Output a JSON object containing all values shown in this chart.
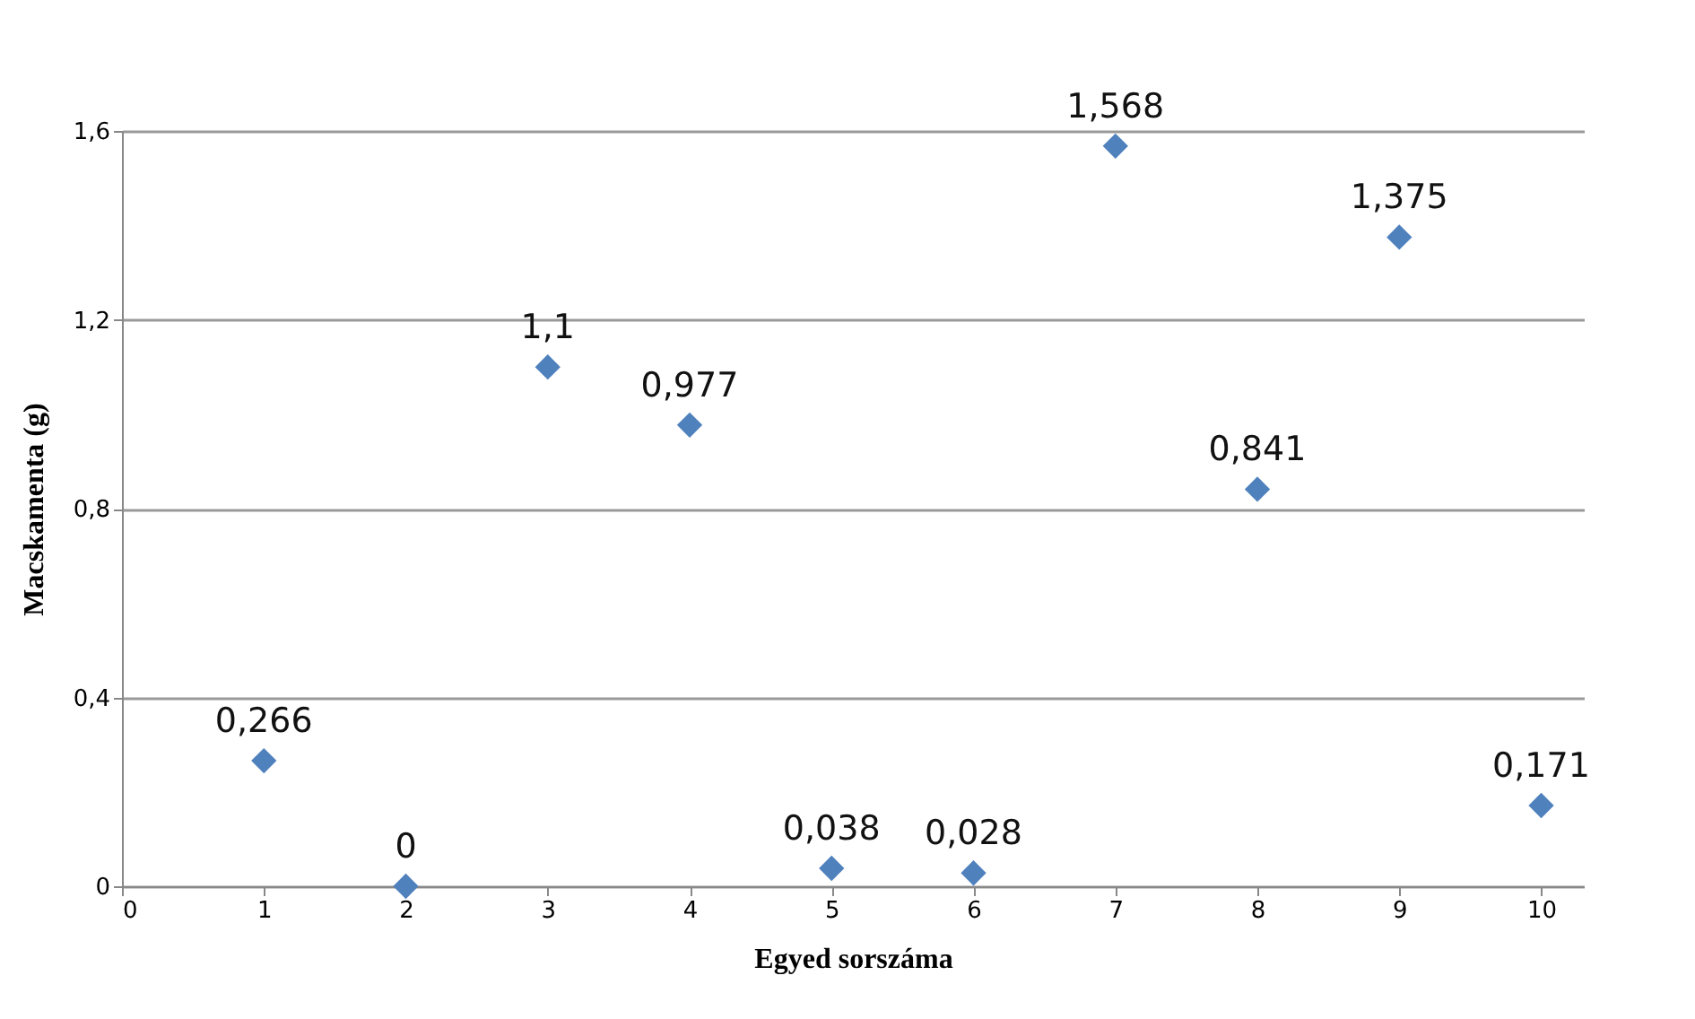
{
  "chart_data": {
    "type": "scatter",
    "xlabel": "Egyed sorszáma",
    "ylabel": "Macskamenta (g)",
    "x": [
      1,
      2,
      3,
      4,
      5,
      6,
      7,
      8,
      9,
      10
    ],
    "series": [
      {
        "color": "#4f81bd",
        "values": [
          0.266,
          0,
          1.1,
          0.977,
          0.038,
          0.028,
          1.568,
          0.841,
          1.375,
          0.171
        ],
        "value_labels": [
          "0,266",
          "0",
          "1,1",
          "0,977",
          "0,038",
          "0,028",
          "1,568",
          "0,841",
          "1,375",
          "0,171"
        ]
      }
    ],
    "xlim": [
      0,
      10.3
    ],
    "xticks": [
      0,
      1,
      2,
      3,
      4,
      5,
      6,
      7,
      8,
      9,
      10
    ],
    "ylim": [
      0,
      1.6
    ],
    "yticks": [
      0,
      {
        "value": 0.4,
        "label": "0,4"
      },
      {
        "value": 0.8,
        "label": "0,8"
      },
      {
        "value": 1.2,
        "label": "1,2"
      },
      {
        "value": 1.6,
        "label": "1,6"
      }
    ],
    "grid": "y",
    "marker": "diamond"
  }
}
